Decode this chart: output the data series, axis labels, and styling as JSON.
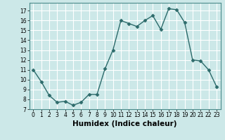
{
  "x": [
    0,
    1,
    2,
    3,
    4,
    5,
    6,
    7,
    8,
    9,
    10,
    11,
    12,
    13,
    14,
    15,
    16,
    17,
    18,
    19,
    20,
    21,
    22,
    23
  ],
  "y": [
    11,
    9.8,
    8.4,
    7.7,
    7.8,
    7.4,
    7.7,
    8.5,
    8.5,
    11.1,
    13.0,
    16.0,
    15.7,
    15.4,
    16.0,
    16.5,
    15.1,
    17.2,
    17.1,
    15.8,
    12.0,
    11.9,
    11.0,
    9.3
  ],
  "line_color": "#2d6b6b",
  "marker": "D",
  "marker_size": 2.5,
  "linewidth": 1.0,
  "bg_color": "#cce8e8",
  "grid_color": "#ffffff",
  "xlabel": "Humidex (Indice chaleur)",
  "ylabel": "",
  "title": "",
  "xlim": [
    -0.5,
    23.5
  ],
  "ylim": [
    7,
    17.8
  ],
  "yticks": [
    7,
    8,
    9,
    10,
    11,
    12,
    13,
    14,
    15,
    16,
    17
  ],
  "xtick_labels": [
    "0",
    "1",
    "2",
    "3",
    "4",
    "5",
    "6",
    "7",
    "8",
    "9",
    "10",
    "11",
    "12",
    "13",
    "14",
    "15",
    "16",
    "17",
    "18",
    "19",
    "20",
    "21",
    "22",
    "23"
  ],
  "tick_fontsize": 5.5,
  "xlabel_fontsize": 7.5,
  "xlabel_bold": true
}
